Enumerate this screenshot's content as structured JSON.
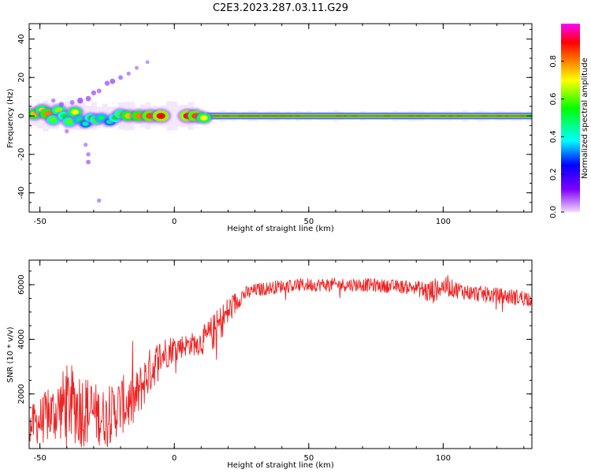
{
  "figure": {
    "title": "C2E3.2023.287.03.11.G29"
  },
  "chart_data": [
    {
      "type": "heatmap",
      "xlabel": "Height of straight line (km)",
      "ylabel": "Frequency (Hz)",
      "xlim": [
        -54,
        133
      ],
      "ylim": [
        -50,
        48
      ],
      "x_ticks": [
        -50,
        0,
        50,
        100
      ],
      "y_ticks": [
        -40,
        -20,
        0,
        20,
        40
      ],
      "grid": false,
      "colorbar": {
        "label": "Normalized spectral amplitude",
        "range": [
          0,
          1
        ],
        "ticks": [
          0.0,
          0.2,
          0.4,
          0.6,
          0.8
        ],
        "colormap": [
          "#f2d9ff",
          "#8000ff",
          "#0000ff",
          "#00ffff",
          "#00ff00",
          "#ffff00",
          "#ff8000",
          "#ff0000",
          "#ff00ff"
        ]
      },
      "main_band": {
        "x_start": 12,
        "x_end": 133,
        "frequency_hz": 0,
        "half_width_hz": 1.8,
        "amplitude": 0.95
      },
      "blobs": [
        {
          "x": -52,
          "y": 1,
          "amp": 0.75
        },
        {
          "x": -49,
          "y": 3,
          "amp": 0.7
        },
        {
          "x": -47,
          "y": 1,
          "amp": 0.8
        },
        {
          "x": -45,
          "y": -2,
          "amp": 0.6
        },
        {
          "x": -43,
          "y": 3,
          "amp": 0.65
        },
        {
          "x": -41,
          "y": 0,
          "amp": 0.55
        },
        {
          "x": -39,
          "y": -3,
          "amp": 0.6
        },
        {
          "x": -37,
          "y": 2,
          "amp": 0.7
        },
        {
          "x": -35,
          "y": -2,
          "amp": 0.5
        },
        {
          "x": -33,
          "y": -4,
          "amp": 0.45
        },
        {
          "x": -31,
          "y": -1,
          "amp": 0.55
        },
        {
          "x": -29,
          "y": -2,
          "amp": 0.6
        },
        {
          "x": -27,
          "y": -1,
          "amp": 0.5
        },
        {
          "x": -24,
          "y": -3,
          "amp": 0.45
        },
        {
          "x": -22,
          "y": -1,
          "amp": 0.55
        },
        {
          "x": -20,
          "y": 1,
          "amp": 0.6
        },
        {
          "x": -17,
          "y": 0,
          "amp": 0.75
        },
        {
          "x": -13,
          "y": 0,
          "amp": 0.8
        },
        {
          "x": -9,
          "y": 0,
          "amp": 0.85
        },
        {
          "x": -5,
          "y": 0,
          "amp": 0.9
        },
        {
          "x": 5,
          "y": 0,
          "amp": 0.9
        },
        {
          "x": 8,
          "y": 0,
          "amp": 0.85
        },
        {
          "x": 11,
          "y": -1,
          "amp": 0.7
        }
      ],
      "scatter_points": [
        {
          "x": -42,
          "y": 6,
          "amp": 0.1
        },
        {
          "x": -38,
          "y": 7,
          "amp": 0.08
        },
        {
          "x": -35,
          "y": 8,
          "amp": 0.15
        },
        {
          "x": -32,
          "y": 9,
          "amp": 0.12
        },
        {
          "x": -30,
          "y": 12,
          "amp": 0.1
        },
        {
          "x": -28,
          "y": 13,
          "amp": 0.08
        },
        {
          "x": -25,
          "y": 17,
          "amp": 0.1
        },
        {
          "x": -23,
          "y": 18,
          "amp": 0.12
        },
        {
          "x": -20,
          "y": 20,
          "amp": 0.08
        },
        {
          "x": -17,
          "y": 22,
          "amp": 0.05
        },
        {
          "x": -14,
          "y": 25,
          "amp": 0.04
        },
        {
          "x": -10,
          "y": 28,
          "amp": 0.03
        },
        {
          "x": -33,
          "y": -15,
          "amp": 0.05
        },
        {
          "x": -32,
          "y": -20,
          "amp": 0.06
        },
        {
          "x": -32,
          "y": -24,
          "amp": 0.08
        },
        {
          "x": -28,
          "y": -44,
          "amp": 0.05
        },
        {
          "x": -45,
          "y": 8,
          "amp": 0.06
        },
        {
          "x": -40,
          "y": -8,
          "amp": 0.05
        }
      ]
    },
    {
      "type": "line",
      "xlabel": "Height of straight line (km)",
      "ylabel": "SNR (10 * v/v)",
      "xlim": [
        -54,
        133
      ],
      "ylim": [
        0,
        6900
      ],
      "x_ticks": [
        -50,
        0,
        50,
        100
      ],
      "y_ticks": [
        2000,
        4000,
        6000
      ],
      "grid": false,
      "color": "#ee2222",
      "envelope": {
        "x": [
          -54,
          -45,
          -40,
          -35,
          -30,
          -25,
          -20,
          -15,
          -10,
          -5,
          0,
          5,
          10,
          15,
          20,
          25,
          30,
          40,
          50,
          60,
          70,
          80,
          90,
          95,
          100,
          110,
          120,
          133
        ],
        "mean": [
          800,
          1300,
          1700,
          1500,
          1300,
          1100,
          1600,
          1700,
          2700,
          3400,
          3700,
          3800,
          3900,
          4300,
          5000,
          5600,
          5800,
          5950,
          6000,
          6000,
          6000,
          5950,
          5900,
          5700,
          5950,
          5700,
          5600,
          5500
        ],
        "amplitude": [
          700,
          1100,
          1400,
          1500,
          1200,
          1000,
          1100,
          1000,
          900,
          700,
          500,
          400,
          500,
          700,
          600,
          300,
          250,
          250,
          250,
          250,
          250,
          250,
          250,
          500,
          350,
          300,
          300,
          300
        ]
      }
    }
  ]
}
